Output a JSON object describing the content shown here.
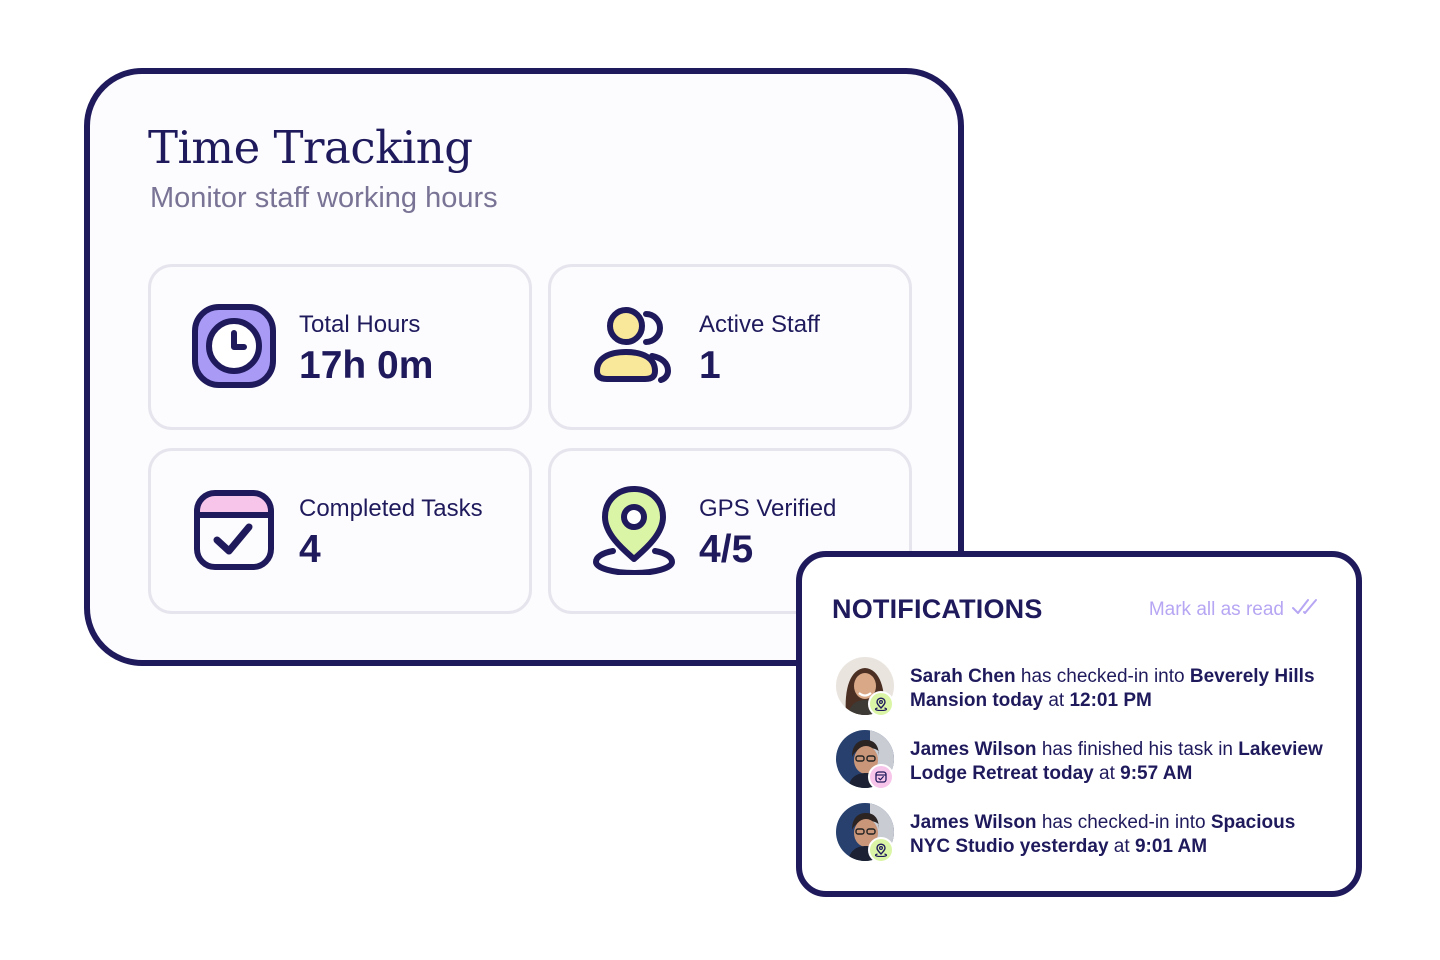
{
  "time_tracking": {
    "title": "Time Tracking",
    "subtitle": "Monitor staff working hours",
    "stats": [
      {
        "label": "Total Hours",
        "value": "17h 0m",
        "icon": "clock-icon",
        "accent": "#a99bf5"
      },
      {
        "label": "Active Staff",
        "value": "1",
        "icon": "users-icon",
        "accent": "#f9e79a"
      },
      {
        "label": "Completed Tasks",
        "value": "4",
        "icon": "calendar-check-icon",
        "accent": "#f7c4ea"
      },
      {
        "label": "GPS Verified",
        "value": "4/5",
        "icon": "map-pin-icon",
        "accent": "#dbf5a6"
      }
    ]
  },
  "notifications": {
    "title": "NOTIFICATIONS",
    "mark_all_label": "Mark all as read",
    "mark_all_icon": "double-check-icon",
    "items": [
      {
        "name": "Sarah Chen",
        "action": "has checked-in into",
        "location": "Beverely Hills Mansion",
        "when": "today",
        "at": "at",
        "time": "12:01 PM",
        "badge": "gps-pin-icon"
      },
      {
        "name": "James Wilson",
        "action": "has finished his task in",
        "location": "Lakeview Lodge Retreat",
        "when": "today",
        "at": "at",
        "time": "9:57 AM",
        "badge": "task-calendar-icon"
      },
      {
        "name": "James Wilson",
        "action": "has checked-in into",
        "location": "Spacious NYC Studio",
        "when": "yesterday",
        "at": "at",
        "time": "9:01 AM",
        "badge": "gps-pin-icon"
      }
    ]
  },
  "colors": {
    "ink": "#1f1a5c",
    "muted": "#797495",
    "border": "#e6e5ee",
    "link": "#b7a6f3"
  }
}
